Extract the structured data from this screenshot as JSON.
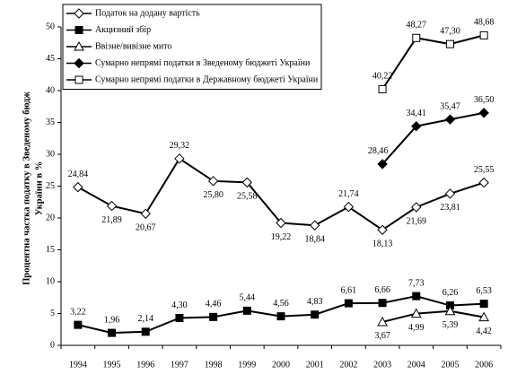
{
  "chart_data": {
    "type": "line",
    "y_label": [
      "Процентна частка податку в Зведеному бюдж",
      "України в %"
    ],
    "categories": [
      "1994",
      "1995",
      "1996",
      "1997",
      "1998",
      "1999",
      "2000",
      "2001",
      "2002",
      "2003",
      "2004",
      "2005",
      "2006"
    ],
    "ylim": [
      0,
      50
    ],
    "yticks": [
      0,
      5,
      10,
      15,
      20,
      25,
      30,
      35,
      40,
      45,
      50
    ],
    "legend": "top-left",
    "series": [
      {
        "name": "Податок на додану вартість",
        "color": "#000000",
        "marker": "diamond-open",
        "values": [
          24.84,
          21.89,
          20.67,
          29.32,
          25.8,
          25.58,
          19.22,
          18.84,
          21.74,
          18.13,
          21.69,
          23.81,
          25.55
        ],
        "value_labels": [
          "24,84",
          "21,89",
          "20,67",
          "29,32",
          "25,80",
          "25,58",
          "19,22",
          "18,84",
          "21,74",
          "18,13",
          "21,69",
          "23,81",
          "25,55"
        ]
      },
      {
        "name": "Акцизний збір",
        "color": "#000000",
        "marker": "square-filled",
        "values": [
          3.22,
          1.96,
          2.14,
          4.3,
          4.46,
          5.44,
          4.56,
          4.83,
          6.61,
          6.66,
          7.73,
          6.26,
          6.53
        ],
        "value_labels": [
          "3,22",
          "1,96",
          "2,14",
          "4,30",
          "4,46",
          "5,44",
          "4,56",
          "4,83",
          "6,61",
          "6,66",
          "7,73",
          "6,26",
          "6,53"
        ]
      },
      {
        "name": "Ввізне/вивізне мито",
        "color": "#000000",
        "marker": "triangle-open",
        "values": [
          null,
          null,
          null,
          null,
          null,
          null,
          null,
          null,
          null,
          3.67,
          4.99,
          5.39,
          4.42
        ],
        "value_labels": [
          null,
          null,
          null,
          null,
          null,
          null,
          null,
          null,
          null,
          "3,67",
          "4,99",
          "5,39",
          "4,42"
        ]
      },
      {
        "name": "Сумарно непрямі податки в Зведеному бюджеті України",
        "color": "#000000",
        "marker": "diamond-filled",
        "values": [
          null,
          null,
          null,
          null,
          null,
          null,
          null,
          null,
          null,
          28.46,
          34.41,
          35.47,
          36.5
        ],
        "value_labels": [
          null,
          null,
          null,
          null,
          null,
          null,
          null,
          null,
          null,
          "28,46",
          "34,41",
          "35,47",
          "36,50"
        ]
      },
      {
        "name": "Сумарно непрямі податки в Державному бюджеті України",
        "color": "#000000",
        "marker": "square-open",
        "values": [
          null,
          null,
          null,
          null,
          null,
          null,
          null,
          null,
          null,
          40.22,
          48.27,
          47.3,
          48.68
        ],
        "value_labels": [
          null,
          null,
          null,
          null,
          null,
          null,
          null,
          null,
          null,
          "40,22",
          "48,27",
          "47,30",
          "48,68"
        ]
      }
    ]
  }
}
